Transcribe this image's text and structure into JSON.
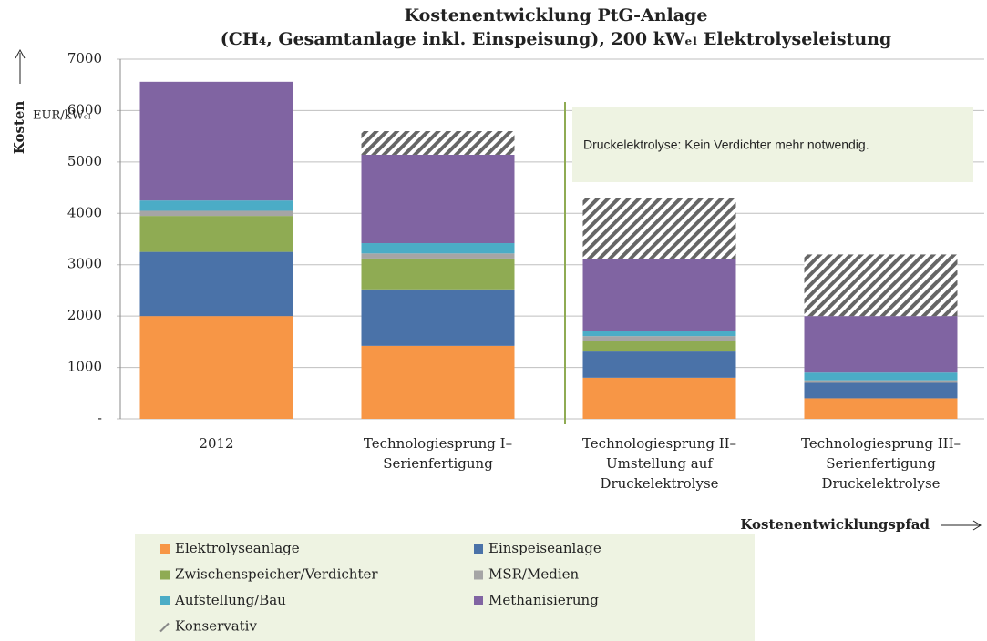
{
  "chart_data": {
    "type": "stacked_bar",
    "title": [
      "Kostenentwicklung PtG-Anlage",
      "(CH₄, Gesamtanlage inkl. Einspeisung), 200 kWₑₗ Elektrolyseleistung"
    ],
    "y_label": "Kosten",
    "y_unit": "EUR/kWₑₗ",
    "x_label": "Kostenentwicklungspfad",
    "annotation": "Druckelektrolyse: Kein Verdichter mehr notwendig.",
    "categories": [
      [
        "2012"
      ],
      [
        "Technologiesprung I–",
        "Serienfertigung"
      ],
      [
        "Technologiesprung II–",
        "Umstellung auf",
        "Druckelektrolyse"
      ],
      [
        "Technologiesprung III–",
        "Serienfertigung",
        "Druckelektrolyse"
      ]
    ],
    "series": [
      {
        "name": "Elektrolyseanlage",
        "color": "#f79646",
        "values": [
          2000,
          1420,
          800,
          400
        ]
      },
      {
        "name": "Einspeiseanlage",
        "color": "#4a72a8",
        "values": [
          1250,
          1100,
          510,
          300
        ]
      },
      {
        "name": "Zwischenspeicher/Verdichter",
        "color": "#8fab53",
        "values": [
          700,
          600,
          200,
          0
        ]
      },
      {
        "name": "MSR/Medien",
        "color": "#a5a5a5",
        "values": [
          100,
          100,
          100,
          50
        ]
      },
      {
        "name": "Aufstellung/Bau",
        "color": "#4bacc6",
        "values": [
          200,
          200,
          100,
          150
        ]
      },
      {
        "name": "Methanisierung",
        "color": "#8064a2",
        "values": [
          2310,
          1720,
          1400,
          1100
        ]
      },
      {
        "name": "Konservativ",
        "color": "#555555",
        "hatched": true,
        "values": [
          0,
          460,
          1190,
          1200
        ]
      }
    ],
    "ylim": [
      0,
      7000
    ],
    "yticks": [
      {
        "value": 0,
        "label": "-"
      },
      1000,
      2000,
      3000,
      4000,
      5000,
      6000,
      7000
    ],
    "grid": true
  }
}
